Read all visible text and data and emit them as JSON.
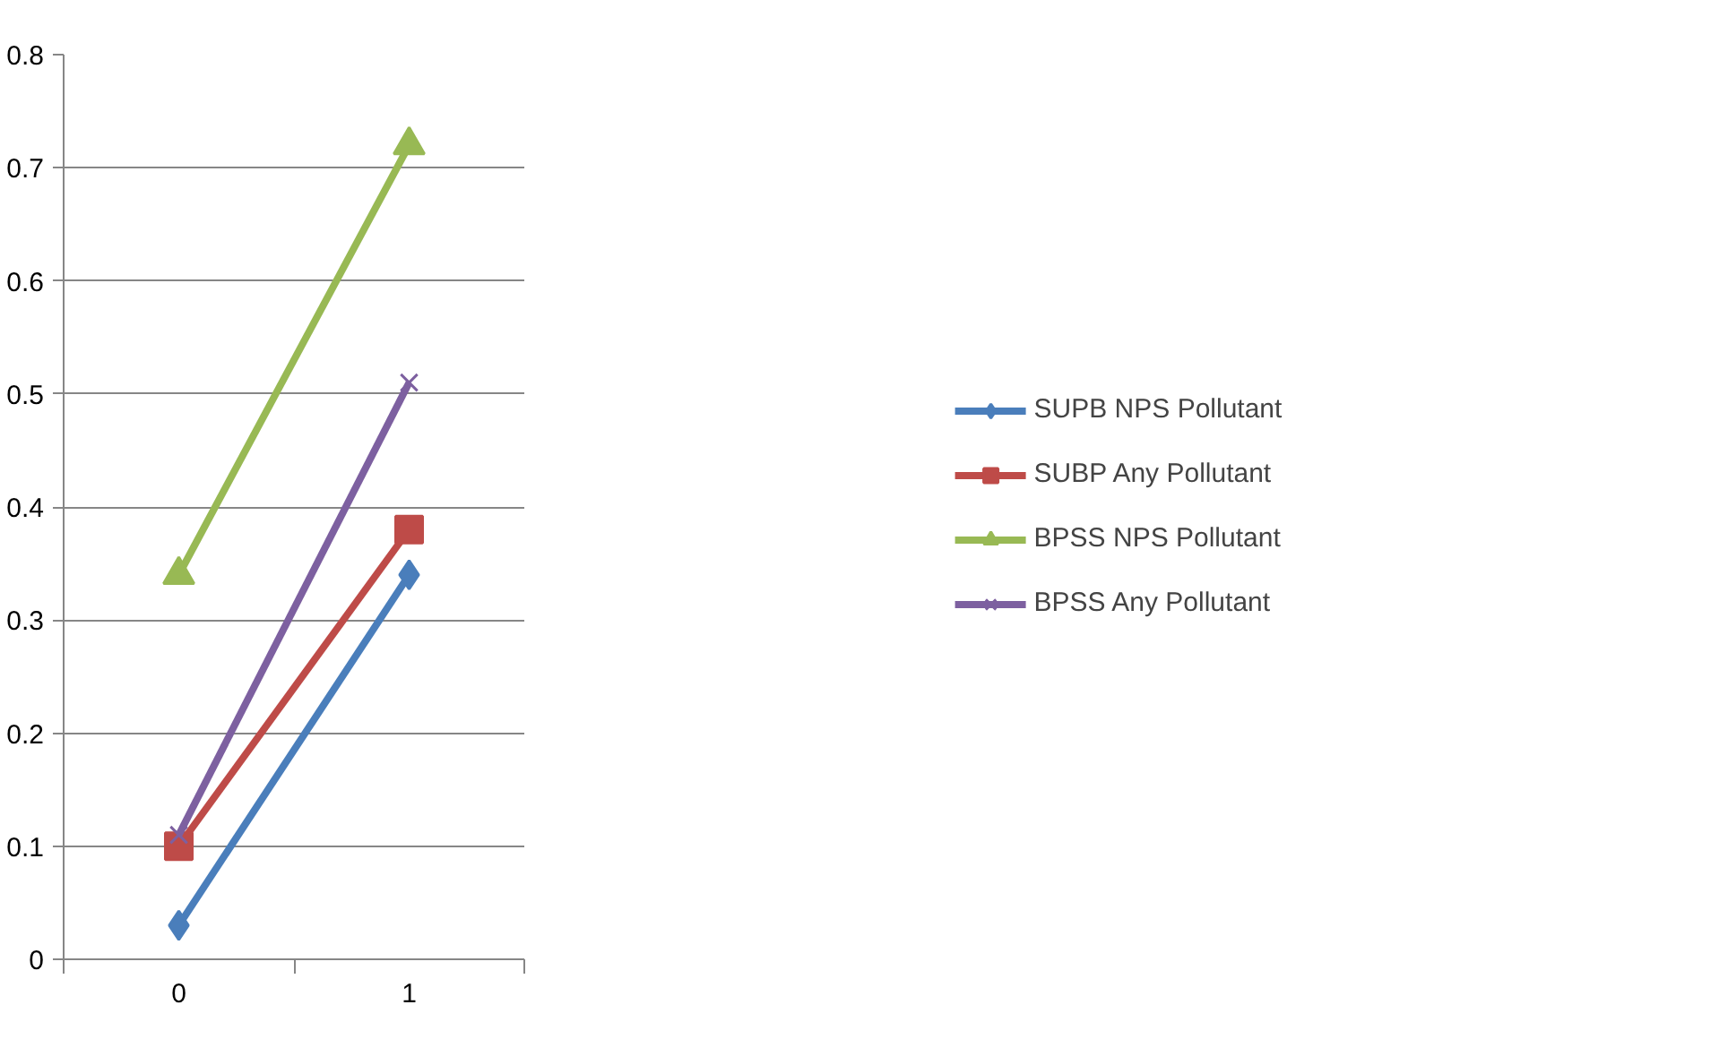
{
  "chart_data": {
    "type": "line",
    "categories": [
      "0",
      "1"
    ],
    "ylim": [
      0,
      0.8
    ],
    "yticks": [
      0,
      0.1,
      0.2,
      0.3,
      0.4,
      0.5,
      0.6,
      0.7,
      0.8
    ],
    "grid": "y",
    "legend": "right",
    "line_style": "solid",
    "series": [
      {
        "name": "SUPB NPS Pollutant",
        "color": "#4a7ebb",
        "marker": "diamond",
        "values": [
          0.03,
          0.34
        ]
      },
      {
        "name": "SUBP Any Pollutant",
        "color": "#be4b48",
        "marker": "square",
        "values": [
          0.1,
          0.38
        ]
      },
      {
        "name": "BPSS NPS Pollutant",
        "color": "#98b954",
        "marker": "triangle",
        "values": [
          0.34,
          0.72
        ]
      },
      {
        "name": "BPSS Any Pollutant",
        "color": "#7d60a0",
        "marker": "cross",
        "values": [
          0.11,
          0.51
        ]
      }
    ]
  }
}
